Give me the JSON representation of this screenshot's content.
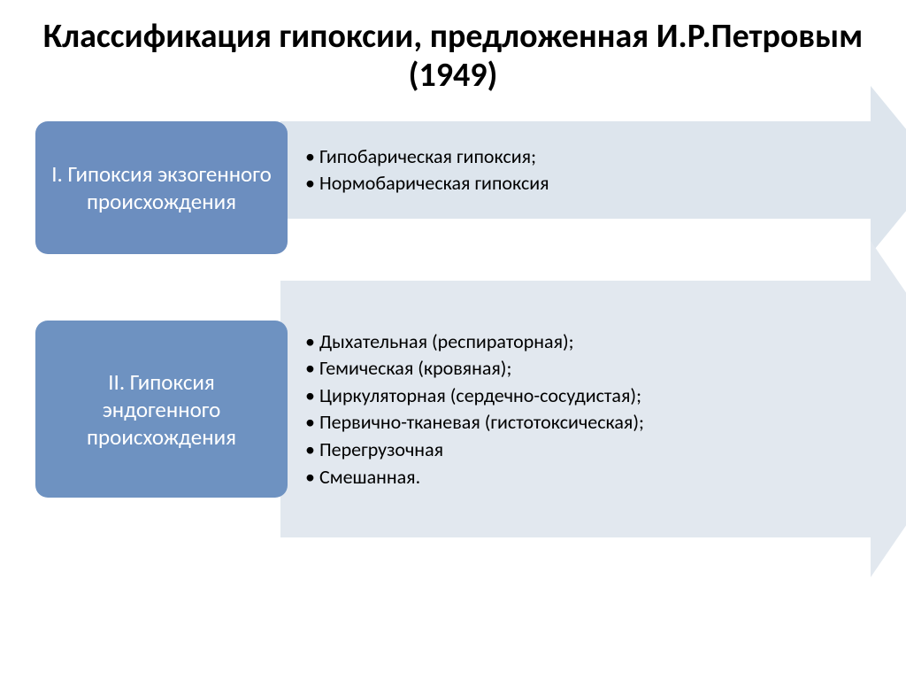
{
  "title": "Классификация гипоксии, предложенная И.Р.Петровым (1949)",
  "colors": {
    "label_bg": "#6c8ebf",
    "label_bg_alt": "#6e92c1",
    "arrow_bg": "#dde5ed",
    "arrow_bg_alt": "#e2e8ef",
    "label_text": "#ffffff",
    "body_text": "#000000",
    "page_bg": "#ffffff"
  },
  "rows": [
    {
      "label": "I. Гипоксия экзогенного происхождения",
      "items": [
        "Гипобарическая гипоксия;",
        "Нормобарическая гипоксия"
      ],
      "label_fontsize": 25,
      "body_fontsize": 22,
      "label_height": 150,
      "arrow_height": 110,
      "arrow_head_height": 190,
      "arrow_head_width": 78
    },
    {
      "label": "II. Гипоксия эндогенного происхождения",
      "items": [
        "Дыхательная (респираторная);",
        "Гемическая (кровяная);",
        "Циркуляторная (сердечно-сосудистая);",
        "Первично-тканевая (гистотоксическая);",
        "Перегрузочная",
        "Смешанная."
      ],
      "label_fontsize": 25,
      "body_fontsize": 22,
      "label_height": 200,
      "arrow_height": 290,
      "arrow_head_height": 380,
      "arrow_head_width": 130
    }
  ]
}
